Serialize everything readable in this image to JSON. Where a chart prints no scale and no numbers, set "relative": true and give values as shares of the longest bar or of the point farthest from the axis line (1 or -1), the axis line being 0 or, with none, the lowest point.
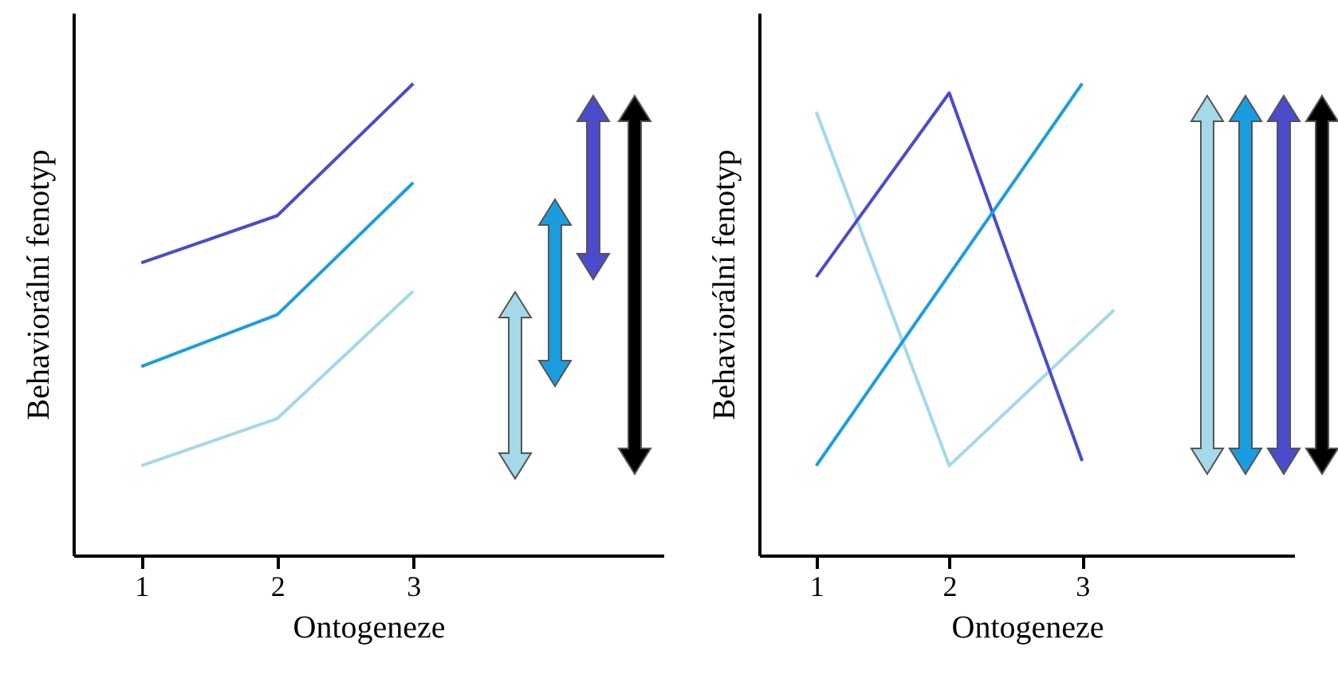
{
  "chart_data": [
    {
      "type": "line",
      "xlabel": "Ontogeneze",
      "ylabel": "Behaviorální fenotyp",
      "relative": true,
      "x": [
        1,
        2,
        3
      ],
      "xlim": [
        0.5,
        4.84
      ],
      "xticks": [
        1,
        2,
        3
      ],
      "grid": false,
      "legend": false,
      "marker": "none",
      "line_style": "solid",
      "series": [
        {
          "color": "#4b4bcc",
          "values": [
            0.62,
            0.72,
            1.0
          ]
        },
        {
          "color": "#1a9de0",
          "values": [
            0.4,
            0.51,
            0.79
          ]
        },
        {
          "color": "#a3d9e8",
          "values": [
            0.19,
            0.29,
            0.56
          ]
        }
      ]
    },
    {
      "type": "line",
      "xlabel": "Ontogeneze",
      "ylabel": "Behaviorální fenotyp",
      "relative": true,
      "xlim": [
        0.57,
        4.6
      ],
      "xticks": [
        1,
        2,
        3
      ],
      "grid": false,
      "legend": false,
      "marker": "none",
      "line_style": "solid",
      "series": [
        {
          "color": "#a3d9e8",
          "x": [
            1,
            2,
            3.24
          ],
          "values": [
            0.94,
            0.19,
            0.52
          ]
        },
        {
          "color": "#4b4bcc",
          "x": [
            1,
            2,
            3
          ],
          "values": [
            0.59,
            0.98,
            0.2
          ]
        },
        {
          "color": "#1a9de0",
          "x": [
            1,
            3
          ],
          "values": [
            0.19,
            1.0
          ]
        }
      ]
    }
  ]
}
